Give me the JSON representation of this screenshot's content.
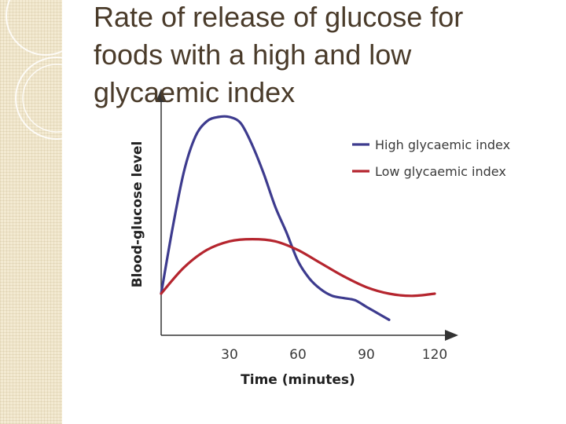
{
  "slide": {
    "title": "Rate of release of glucose for foods with a high and low glycaemic index"
  },
  "chart_data": {
    "type": "line",
    "title": "",
    "xlabel": "Time (minutes)",
    "ylabel": "Blood-glucose level",
    "x_ticks": [
      30,
      60,
      90,
      120
    ],
    "xlim": [
      0,
      130
    ],
    "ylim": [
      0,
      100
    ],
    "y_tick_labels": false,
    "grid": false,
    "legend_position": "top-right",
    "series": [
      {
        "name": "High glycaemic index",
        "color": "#3d3b8e",
        "x": [
          0,
          5,
          10,
          15,
          20,
          25,
          30,
          35,
          40,
          45,
          50,
          55,
          60,
          65,
          70,
          75,
          80,
          85,
          90,
          95,
          100
        ],
        "y": [
          18,
          48,
          74,
          90,
          97,
          99,
          99,
          96,
          86,
          73,
          58,
          46,
          33,
          25,
          20,
          17,
          16,
          15,
          12,
          9,
          6
        ]
      },
      {
        "name": "Low glycaemic index",
        "color": "#b5252e",
        "x": [
          0,
          10,
          20,
          30,
          40,
          50,
          60,
          70,
          80,
          90,
          100,
          110,
          120
        ],
        "y": [
          18,
          30,
          38,
          42,
          43,
          42,
          38,
          32,
          26,
          21,
          18,
          17,
          18
        ]
      }
    ]
  }
}
